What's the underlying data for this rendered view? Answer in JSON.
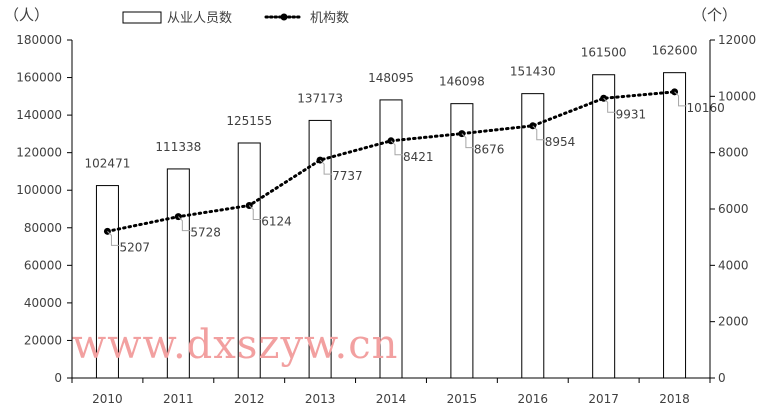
{
  "chart_data": {
    "type": "bar",
    "categories": [
      "2010",
      "2011",
      "2012",
      "2013",
      "2014",
      "2015",
      "2016",
      "2017",
      "2018"
    ],
    "series": [
      {
        "name": "从业人员数",
        "type": "bar",
        "axis": "left",
        "values": [
          102471,
          111338,
          125155,
          137173,
          148095,
          146098,
          151430,
          161500,
          162600
        ]
      },
      {
        "name": "机构数",
        "type": "line",
        "axis": "right",
        "values": [
          5207,
          5728,
          6124,
          7737,
          8421,
          8676,
          8954,
          9931,
          10160
        ]
      }
    ],
    "y_left": {
      "unit_label": "（人）",
      "range": [
        0,
        180000
      ],
      "ticks": [
        "0",
        "20000",
        "40000",
        "60000",
        "80000",
        "100000",
        "120000",
        "140000",
        "160000",
        "180000"
      ]
    },
    "y_right": {
      "unit_label": "（个）",
      "range": [
        0,
        12000
      ],
      "ticks": [
        "0",
        "2000",
        "4000",
        "6000",
        "8000",
        "10000",
        "12000"
      ]
    },
    "legend_position": "top",
    "grid": false
  },
  "watermark": "www.dxszyw.cn"
}
